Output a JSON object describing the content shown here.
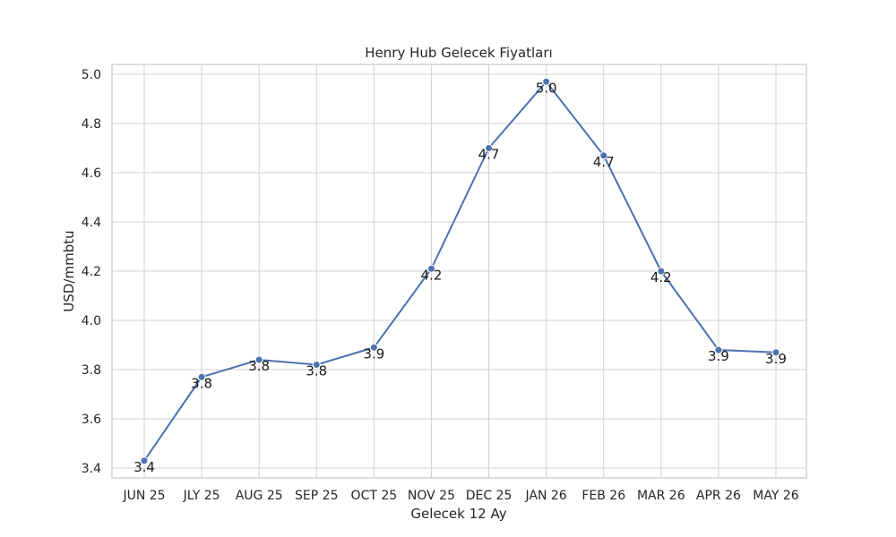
{
  "chart_data": {
    "type": "line",
    "title": "Henry Hub Gelecek Fiyatları",
    "xlabel": "Gelecek 12 Ay",
    "ylabel": "USD/mmbtu",
    "categories": [
      "JUN 25",
      "JLY 25",
      "AUG 25",
      "SEP 25",
      "OCT 25",
      "NOV 25",
      "DEC 25",
      "JAN 26",
      "FEB 26",
      "MAR 26",
      "APR 26",
      "MAY 26"
    ],
    "series": [
      {
        "values": [
          3.43,
          3.77,
          3.84,
          3.82,
          3.89,
          4.21,
          4.7,
          4.97,
          4.67,
          4.2,
          3.88,
          3.87
        ],
        "labels": [
          "3.4",
          "3.8",
          "3.8",
          "3.8",
          "3.9",
          "4.2",
          "4.7",
          "5.0",
          "4.7",
          "4.2",
          "3.9",
          "3.9"
        ]
      }
    ],
    "ylim": [
      3.36,
      5.04
    ],
    "yticks": [
      3.4,
      3.6,
      3.8,
      4.0,
      4.2,
      4.4,
      4.6,
      4.8,
      5.0
    ],
    "ytick_labels": [
      "3.4",
      "3.6",
      "3.8",
      "4.0",
      "4.2",
      "4.4",
      "4.6",
      "4.8",
      "5.0"
    ],
    "grid": true,
    "line_color": "#4c72b0",
    "grid_color": "#d0d0d0"
  }
}
